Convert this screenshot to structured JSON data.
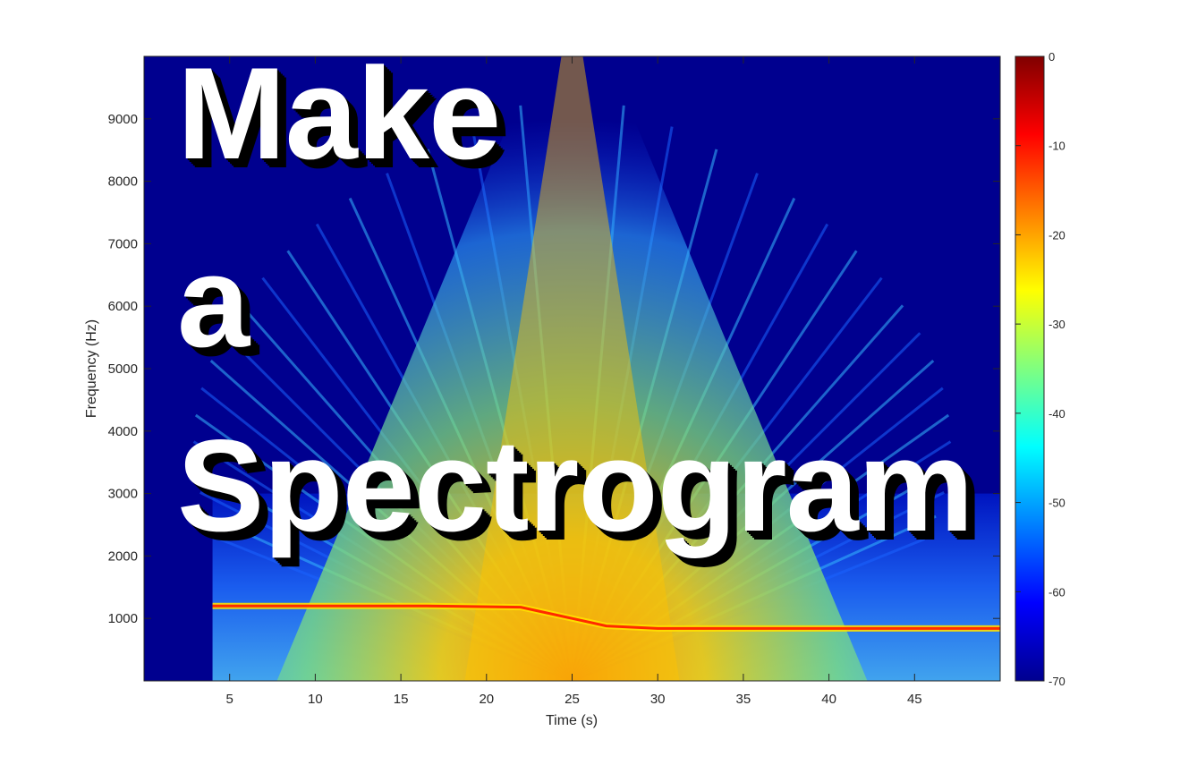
{
  "headline": {
    "line1": "Make",
    "line2": "a",
    "line3": "Spectrogram"
  },
  "chart_data": {
    "type": "heatmap",
    "title": "",
    "xlabel": "Time (s)",
    "ylabel": "Frequency (Hz)",
    "xlim": [
      0,
      50
    ],
    "ylim": [
      0,
      10000
    ],
    "xticks": [
      5,
      10,
      15,
      20,
      25,
      30,
      35,
      40,
      45
    ],
    "yticks": [
      1000,
      2000,
      3000,
      4000,
      5000,
      6000,
      7000,
      8000,
      9000
    ],
    "colorbar": {
      "colormap": "jet",
      "range": [
        -70,
        0
      ],
      "ticks": [
        0,
        -10,
        -20,
        -30,
        -40,
        -50,
        -60,
        -70
      ]
    },
    "signal_start_s": 4,
    "tone_track": [
      {
        "t": 4,
        "f": 1200
      },
      {
        "t": 16.5,
        "f": 1200
      },
      {
        "t": 22,
        "f": 1180
      },
      {
        "t": 25,
        "f": 1000
      },
      {
        "t": 27,
        "f": 880
      },
      {
        "t": 30,
        "f": 840
      },
      {
        "t": 50,
        "f": 840
      }
    ],
    "broadband_center_s": 25,
    "colors": {
      "background": "#00008f",
      "hot": "#ff2a00"
    }
  }
}
